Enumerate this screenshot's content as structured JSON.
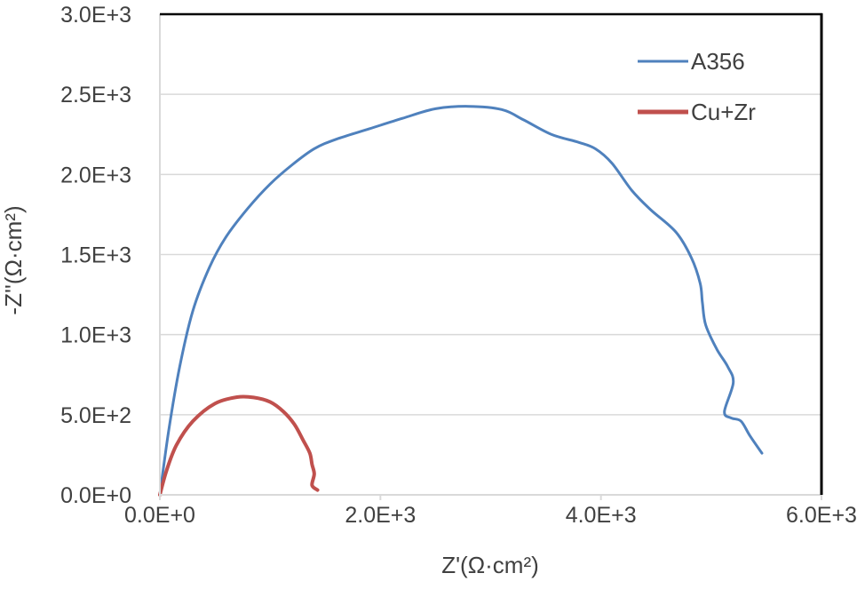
{
  "chart_data": {
    "type": "line",
    "title": "",
    "xlabel": "Z'(Ω·cm²)",
    "ylabel": "-Z''(Ω·cm²)",
    "xlim": [
      0,
      6000
    ],
    "ylim": [
      0,
      3000
    ],
    "x_ticks": [
      {
        "value": 0,
        "label": "0.0E+0"
      },
      {
        "value": 2000,
        "label": "2.0E+3"
      },
      {
        "value": 4000,
        "label": "4.0E+3"
      },
      {
        "value": 6000,
        "label": "6.0E+3"
      }
    ],
    "y_ticks": [
      {
        "value": 0,
        "label": "0.0E+0"
      },
      {
        "value": 500,
        "label": "5.0E+2"
      },
      {
        "value": 1000,
        "label": "1.0E+3"
      },
      {
        "value": 1500,
        "label": "1.5E+3"
      },
      {
        "value": 2000,
        "label": "2.0E+3"
      },
      {
        "value": 2500,
        "label": "2.5E+3"
      },
      {
        "value": 3000,
        "label": "3.0E+3"
      }
    ],
    "grid": "horizontal",
    "legend_position": "top-right",
    "series": [
      {
        "name": "A356",
        "color": "#4f81bd",
        "points": [
          [
            0,
            0
          ],
          [
            80,
            400
          ],
          [
            180,
            800
          ],
          [
            300,
            1150
          ],
          [
            450,
            1420
          ],
          [
            600,
            1610
          ],
          [
            800,
            1790
          ],
          [
            1000,
            1940
          ],
          [
            1200,
            2060
          ],
          [
            1400,
            2160
          ],
          [
            1600,
            2220
          ],
          [
            1900,
            2285
          ],
          [
            2200,
            2350
          ],
          [
            2500,
            2410
          ],
          [
            2800,
            2425
          ],
          [
            3100,
            2405
          ],
          [
            3300,
            2340
          ],
          [
            3550,
            2250
          ],
          [
            3800,
            2200
          ],
          [
            3950,
            2160
          ],
          [
            4100,
            2070
          ],
          [
            4280,
            1900
          ],
          [
            4450,
            1780
          ],
          [
            4680,
            1640
          ],
          [
            4820,
            1480
          ],
          [
            4900,
            1320
          ],
          [
            4920,
            1200
          ],
          [
            4950,
            1060
          ],
          [
            5050,
            910
          ],
          [
            5150,
            800
          ],
          [
            5200,
            700
          ],
          [
            5120,
            520
          ],
          [
            5180,
            480
          ],
          [
            5270,
            460
          ],
          [
            5350,
            370
          ],
          [
            5460,
            260
          ]
        ]
      },
      {
        "name": "Cu+Zr",
        "color": "#c0504d",
        "points": [
          [
            0,
            0
          ],
          [
            60,
            150
          ],
          [
            150,
            310
          ],
          [
            300,
            460
          ],
          [
            500,
            570
          ],
          [
            700,
            610
          ],
          [
            850,
            608
          ],
          [
            1000,
            580
          ],
          [
            1120,
            520
          ],
          [
            1220,
            440
          ],
          [
            1300,
            340
          ],
          [
            1360,
            260
          ],
          [
            1380,
            190
          ],
          [
            1400,
            130
          ],
          [
            1380,
            60
          ],
          [
            1430,
            30
          ]
        ]
      }
    ]
  }
}
